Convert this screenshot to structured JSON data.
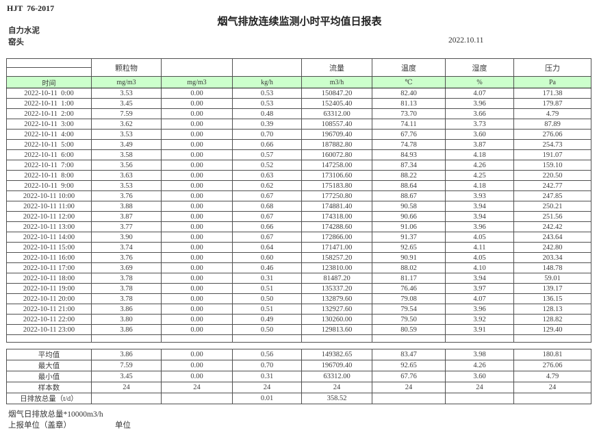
{
  "page": {
    "doc_code": "HJT  76-2017",
    "title": "烟气排放连续监测小时平均值日报表",
    "company": "自力水泥",
    "location": "窑头",
    "date": "2022.10.11"
  },
  "table": {
    "pollutant_headers": [
      "",
      "颗粒物",
      "",
      "",
      "流量",
      "温度",
      "湿度",
      "压力"
    ],
    "unit_row": {
      "time_label": "时间",
      "units": [
        "mg/m3",
        "mg/m3",
        "kg/h",
        "m3/h",
        "℃",
        "%",
        "Pa"
      ]
    },
    "rows": [
      {
        "time": "2022-10-11  0:00",
        "values": [
          "3.53",
          "0.00",
          "0.53",
          "150847.20",
          "82.40",
          "4.07",
          "171.38"
        ]
      },
      {
        "time": "2022-10-11  1:00",
        "values": [
          "3.45",
          "0.00",
          "0.53",
          "152405.40",
          "81.13",
          "3.96",
          "179.87"
        ]
      },
      {
        "time": "2022-10-11  2:00",
        "values": [
          "7.59",
          "0.00",
          "0.48",
          "63312.00",
          "73.70",
          "3.66",
          "4.79"
        ]
      },
      {
        "time": "2022-10-11  3:00",
        "values": [
          "3.62",
          "0.00",
          "0.39",
          "108557.40",
          "74.11",
          "3.73",
          "87.89"
        ]
      },
      {
        "time": "2022-10-11  4:00",
        "values": [
          "3.53",
          "0.00",
          "0.70",
          "196709.40",
          "67.76",
          "3.60",
          "276.06"
        ]
      },
      {
        "time": "2022-10-11  5:00",
        "values": [
          "3.49",
          "0.00",
          "0.66",
          "187882.80",
          "74.78",
          "3.87",
          "254.73"
        ]
      },
      {
        "time": "2022-10-11  6:00",
        "values": [
          "3.58",
          "0.00",
          "0.57",
          "160072.80",
          "84.93",
          "4.18",
          "191.07"
        ]
      },
      {
        "time": "2022-10-11  7:00",
        "values": [
          "3.56",
          "0.00",
          "0.52",
          "147258.00",
          "87.34",
          "4.26",
          "159.10"
        ]
      },
      {
        "time": "2022-10-11  8:00",
        "values": [
          "3.63",
          "0.00",
          "0.63",
          "173106.60",
          "88.22",
          "4.25",
          "220.50"
        ]
      },
      {
        "time": "2022-10-11  9:00",
        "values": [
          "3.53",
          "0.00",
          "0.62",
          "175183.80",
          "88.64",
          "4.18",
          "242.77"
        ]
      },
      {
        "time": "2022-10-11 10:00",
        "values": [
          "3.76",
          "0.00",
          "0.67",
          "177250.80",
          "88.67",
          "3.93",
          "247.85"
        ]
      },
      {
        "time": "2022-10-11 11:00",
        "values": [
          "3.88",
          "0.00",
          "0.68",
          "174881.40",
          "90.58",
          "3.94",
          "250.21"
        ]
      },
      {
        "time": "2022-10-11 12:00",
        "values": [
          "3.87",
          "0.00",
          "0.67",
          "174318.00",
          "90.66",
          "3.94",
          "251.56"
        ]
      },
      {
        "time": "2022-10-11 13:00",
        "values": [
          "3.77",
          "0.00",
          "0.66",
          "174288.60",
          "91.06",
          "3.96",
          "242.42"
        ]
      },
      {
        "time": "2022-10-11 14:00",
        "values": [
          "3.90",
          "0.00",
          "0.67",
          "172866.00",
          "91.37",
          "4.05",
          "243.64"
        ]
      },
      {
        "time": "2022-10-11 15:00",
        "values": [
          "3.74",
          "0.00",
          "0.64",
          "171471.00",
          "92.65",
          "4.11",
          "242.80"
        ]
      },
      {
        "time": "2022-10-11 16:00",
        "values": [
          "3.76",
          "0.00",
          "0.60",
          "158257.20",
          "90.91",
          "4.05",
          "203.34"
        ]
      },
      {
        "time": "2022-10-11 17:00",
        "values": [
          "3.69",
          "0.00",
          "0.46",
          "123810.00",
          "88.02",
          "4.10",
          "148.78"
        ]
      },
      {
        "time": "2022-10-11 18:00",
        "values": [
          "3.78",
          "0.00",
          "0.31",
          "81487.20",
          "81.17",
          "3.94",
          "59.01"
        ]
      },
      {
        "time": "2022-10-11 19:00",
        "values": [
          "3.78",
          "0.00",
          "0.51",
          "135337.20",
          "76.46",
          "3.97",
          "139.17"
        ]
      },
      {
        "time": "2022-10-11 20:00",
        "values": [
          "3.78",
          "0.00",
          "0.50",
          "132879.60",
          "79.08",
          "4.07",
          "136.15"
        ]
      },
      {
        "time": "2022-10-11 21:00",
        "values": [
          "3.86",
          "0.00",
          "0.51",
          "132927.60",
          "79.54",
          "3.96",
          "128.13"
        ]
      },
      {
        "time": "2022-10-11 22:00",
        "values": [
          "3.80",
          "0.00",
          "0.49",
          "130260.00",
          "79.50",
          "3.92",
          "128.82"
        ]
      },
      {
        "time": "2022-10-11 23:00",
        "values": [
          "3.86",
          "0.00",
          "0.50",
          "129813.60",
          "80.59",
          "3.91",
          "129.40"
        ]
      }
    ],
    "summary": [
      {
        "label": "平均值",
        "values": [
          "3.86",
          "0.00",
          "0.56",
          "149382.65",
          "83.47",
          "3.98",
          "180.81"
        ]
      },
      {
        "label": "最大值",
        "values": [
          "7.59",
          "0.00",
          "0.70",
          "196709.40",
          "92.65",
          "4.26",
          "276.06"
        ]
      },
      {
        "label": "最小值",
        "values": [
          "3.45",
          "0.00",
          "0.31",
          "63312.00",
          "67.76",
          "3.60",
          "4.79"
        ]
      },
      {
        "label": "样本数",
        "values": [
          "24",
          "24",
          "24",
          "24",
          "24",
          "24",
          "24"
        ]
      },
      {
        "label": "日排放总量（t/d）",
        "values": [
          "",
          "",
          "0.01",
          "358.52",
          "",
          "",
          ""
        ]
      }
    ]
  },
  "footer": {
    "note": "烟气日排放总量*10000m3/h",
    "report_unit_label": "上报单位（盖章）",
    "unit_label": "单位"
  },
  "colors": {
    "header_green": "#ccffcc",
    "border": "#4e4e4e",
    "text": "#3a3a3a"
  }
}
